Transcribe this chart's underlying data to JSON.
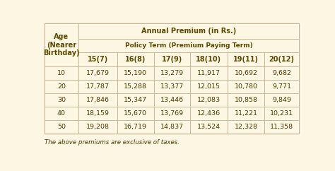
{
  "bg_color": "#fdf6e3",
  "border_color": "#c8b89a",
  "header_text_color": "#5a4a00",
  "cell_text_color": "#4a3a00",
  "col0_header": "Age\n(Nearer\nBirthday)",
  "top_header": "Annual Premium (in Rs.)",
  "mid_header": "Policy Term (Premium Paying Term)",
  "policy_terms": [
    "15(7)",
    "16(8)",
    "17(9)",
    "18(10)",
    "19(11)",
    "20(12)"
  ],
  "ages": [
    "10",
    "20",
    "30",
    "40",
    "50"
  ],
  "data": [
    [
      "17,679",
      "15,190",
      "13,279",
      "11,917",
      "10,692",
      "9,682"
    ],
    [
      "17,787",
      "15,288",
      "13,377",
      "12,015",
      "10,780",
      "9,771"
    ],
    [
      "17,846",
      "15,347",
      "13,446",
      "12,083",
      "10,858",
      "9,849"
    ],
    [
      "18,159",
      "15,670",
      "13,769",
      "12,436",
      "11,221",
      "10,231"
    ],
    [
      "19,208",
      "16,719",
      "14,837",
      "13,524",
      "12,328",
      "11,358"
    ]
  ],
  "footnote": "The above premiums are exclusive of taxes.",
  "font_size_header": 7.0,
  "font_size_subheader": 6.5,
  "font_size_data": 6.8,
  "font_size_note": 6.2
}
